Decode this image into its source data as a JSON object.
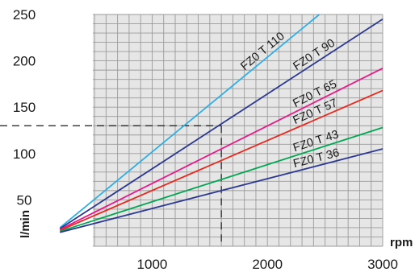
{
  "chart_data": {
    "type": "line",
    "title": "",
    "xlabel": "rpm",
    "ylabel": "l/min",
    "xlim": [
      0,
      3000
    ],
    "ylim": [
      0,
      250
    ],
    "x_ticks": [
      "1000",
      "2000",
      "3000"
    ],
    "y_ticks": [
      "50",
      "100",
      "150",
      "200",
      "250"
    ],
    "grid": true,
    "plot_background": "#e6e6e6",
    "grid_color": "#9a9a9a",
    "series": [
      {
        "name": "FZ0 T 110",
        "color": "#2eaee6",
        "x": [
          200,
          2450
        ],
        "y": [
          20,
          250
        ]
      },
      {
        "name": "FZ0 T 90",
        "color": "#2b3990",
        "x": [
          200,
          3000
        ],
        "y": [
          19,
          245
        ]
      },
      {
        "name": "FZ0 T 65",
        "color": "#e8198b",
        "x": [
          200,
          3000
        ],
        "y": [
          18,
          192
        ]
      },
      {
        "name": "FZ0 T 57",
        "color": "#e8281e",
        "x": [
          200,
          3000
        ],
        "y": [
          17,
          168
        ]
      },
      {
        "name": "FZ0 T 43",
        "color": "#00a651",
        "x": [
          200,
          3000
        ],
        "y": [
          16,
          128
        ]
      },
      {
        "name": "FZ0 T 36",
        "color": "#2b3990",
        "x": [
          200,
          3000
        ],
        "y": [
          15,
          105
        ]
      }
    ],
    "annotations": [
      {
        "type": "reference-lines",
        "style": "dashed",
        "x": 1600,
        "y": 130
      }
    ]
  }
}
